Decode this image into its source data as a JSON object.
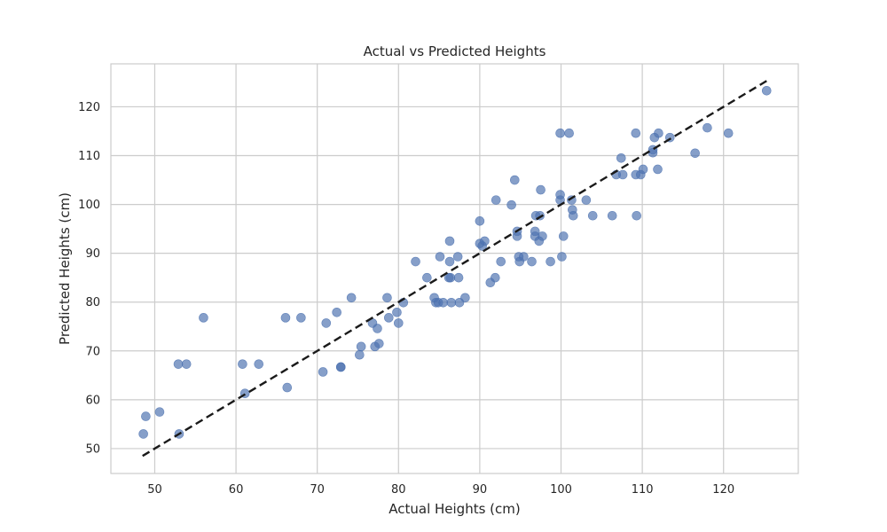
{
  "chart_data": {
    "type": "scatter",
    "title": "Actual vs Predicted Heights",
    "xlabel": "Actual Heights (cm)",
    "ylabel": "Predicted Heights (cm)",
    "xlim": [
      44.6,
      129.2
    ],
    "ylim": [
      44.9,
      128.8
    ],
    "xticks": [
      50,
      60,
      70,
      80,
      90,
      100,
      110,
      120
    ],
    "yticks": [
      50,
      60,
      70,
      80,
      90,
      100,
      110,
      120
    ],
    "grid": true,
    "legend": "none",
    "colors": {
      "points": "#4c72b0",
      "reference_line": "#1a1a1a",
      "grid": "#cccccc",
      "frame": "#cccccc"
    },
    "reference_line": {
      "style": "dashed",
      "x": [
        48.5,
        125.3
      ],
      "y": [
        48.5,
        125.3
      ]
    },
    "points": [
      [
        48.6,
        53.0
      ],
      [
        48.9,
        56.6
      ],
      [
        50.6,
        57.5
      ],
      [
        53.0,
        53.0
      ],
      [
        52.9,
        67.3
      ],
      [
        53.9,
        67.3
      ],
      [
        56.0,
        76.8
      ],
      [
        60.8,
        67.3
      ],
      [
        61.1,
        61.3
      ],
      [
        62.8,
        67.3
      ],
      [
        66.1,
        76.8
      ],
      [
        66.3,
        62.5
      ],
      [
        68.0,
        76.8
      ],
      [
        70.7,
        65.7
      ],
      [
        71.1,
        75.7
      ],
      [
        72.4,
        77.9
      ],
      [
        72.9,
        66.7
      ],
      [
        72.9,
        66.7
      ],
      [
        74.2,
        80.9
      ],
      [
        75.2,
        69.2
      ],
      [
        75.4,
        70.9
      ],
      [
        76.8,
        75.7
      ],
      [
        77.1,
        70.9
      ],
      [
        77.4,
        74.6
      ],
      [
        77.6,
        71.5
      ],
      [
        78.6,
        80.9
      ],
      [
        78.8,
        76.8
      ],
      [
        79.8,
        77.9
      ],
      [
        80.0,
        75.7
      ],
      [
        80.6,
        79.9
      ],
      [
        82.1,
        88.3
      ],
      [
        83.5,
        85.0
      ],
      [
        84.4,
        80.9
      ],
      [
        84.6,
        79.9
      ],
      [
        84.9,
        79.9
      ],
      [
        85.1,
        89.3
      ],
      [
        85.5,
        79.9
      ],
      [
        86.2,
        85.0
      ],
      [
        86.3,
        88.3
      ],
      [
        86.3,
        92.5
      ],
      [
        86.4,
        85.0
      ],
      [
        86.5,
        79.9
      ],
      [
        87.3,
        89.3
      ],
      [
        87.4,
        85.0
      ],
      [
        87.5,
        79.9
      ],
      [
        88.2,
        80.9
      ],
      [
        90.0,
        92.0
      ],
      [
        90.0,
        96.6
      ],
      [
        90.3,
        91.5
      ],
      [
        90.6,
        92.5
      ],
      [
        91.3,
        84.0
      ],
      [
        91.9,
        85.0
      ],
      [
        92.0,
        100.9
      ],
      [
        92.6,
        88.3
      ],
      [
        93.9,
        99.9
      ],
      [
        94.3,
        105.0
      ],
      [
        94.6,
        93.5
      ],
      [
        94.6,
        94.5
      ],
      [
        94.8,
        89.3
      ],
      [
        94.9,
        88.3
      ],
      [
        95.4,
        89.3
      ],
      [
        96.4,
        88.3
      ],
      [
        96.8,
        93.5
      ],
      [
        96.8,
        94.5
      ],
      [
        96.9,
        97.7
      ],
      [
        97.3,
        92.5
      ],
      [
        97.4,
        97.7
      ],
      [
        97.5,
        103.0
      ],
      [
        97.7,
        93.5
      ],
      [
        98.7,
        88.3
      ],
      [
        99.9,
        114.6
      ],
      [
        99.9,
        100.9
      ],
      [
        99.9,
        102.0
      ],
      [
        100.1,
        89.3
      ],
      [
        100.3,
        93.5
      ],
      [
        101.0,
        114.6
      ],
      [
        101.3,
        100.9
      ],
      [
        101.4,
        98.9
      ],
      [
        101.5,
        97.7
      ],
      [
        103.1,
        100.9
      ],
      [
        103.9,
        97.7
      ],
      [
        106.3,
        97.7
      ],
      [
        106.8,
        106.1
      ],
      [
        107.4,
        109.5
      ],
      [
        107.6,
        106.1
      ],
      [
        109.2,
        114.6
      ],
      [
        109.2,
        106.1
      ],
      [
        109.3,
        97.7
      ],
      [
        109.8,
        106.1
      ],
      [
        110.1,
        107.2
      ],
      [
        111.3,
        110.6
      ],
      [
        111.3,
        111.2
      ],
      [
        111.5,
        113.7
      ],
      [
        111.9,
        107.2
      ],
      [
        112.0,
        114.6
      ],
      [
        113.4,
        113.7
      ],
      [
        116.5,
        110.5
      ],
      [
        118.0,
        115.7
      ],
      [
        120.6,
        114.6
      ],
      [
        125.3,
        123.3
      ]
    ]
  }
}
